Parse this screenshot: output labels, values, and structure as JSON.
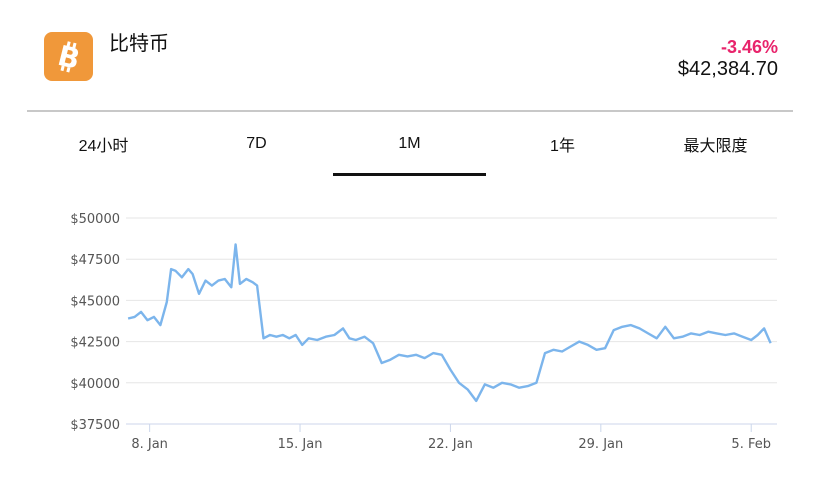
{
  "coin": {
    "name": "比特币",
    "icon": "bitcoin-icon",
    "icon_color": "#f0983a"
  },
  "quote": {
    "change": "-3.46%",
    "change_color": "#e8236b",
    "price": "$42,384.70"
  },
  "tabs": [
    {
      "label": "24小时",
      "active": false
    },
    {
      "label": "7D",
      "active": false
    },
    {
      "label": "1M",
      "active": true
    },
    {
      "label": "1年",
      "active": false
    },
    {
      "label": "最大限度",
      "active": false
    }
  ],
  "chart_data": {
    "type": "line",
    "title": "",
    "xlabel": "",
    "ylabel": "",
    "ylim": [
      37500,
      50000
    ],
    "y_ticks": [
      50000,
      47500,
      45000,
      42500,
      40000,
      37500
    ],
    "y_tick_labels": [
      "$50000",
      "$47500",
      "$45000",
      "$42500",
      "$40000",
      "$37500"
    ],
    "x_ticks": [
      8,
      15,
      22,
      29,
      36
    ],
    "x_tick_labels": [
      "8. Jan",
      "15. Jan",
      "22. Jan",
      "29. Jan",
      "5. Feb"
    ],
    "xlim": [
      6.9,
      37.2
    ],
    "grid": true,
    "line_color": "#7cb5ec",
    "series": [
      {
        "x": [
          7.0,
          7.3,
          7.6,
          7.9,
          8.2,
          8.5,
          8.8,
          9.0,
          9.2,
          9.5,
          9.8,
          10.0,
          10.3,
          10.6,
          10.9,
          11.2,
          11.5,
          11.8,
          12.0,
          12.2,
          12.5,
          12.8,
          13.0,
          13.3,
          13.6,
          13.9,
          14.2,
          14.5,
          14.8,
          15.1,
          15.4,
          15.8,
          16.2,
          16.6,
          17.0,
          17.3,
          17.6,
          18.0,
          18.4,
          18.8,
          19.2,
          19.6,
          20.0,
          20.4,
          20.8,
          21.2,
          21.6,
          22.0,
          22.4,
          22.8,
          23.2,
          23.6,
          24.0,
          24.4,
          24.8,
          25.2,
          25.6,
          26.0,
          26.4,
          26.8,
          27.2,
          27.6,
          28.0,
          28.4,
          28.8,
          29.2,
          29.6,
          30.0,
          30.4,
          30.8,
          31.2,
          31.6,
          32.0,
          32.4,
          32.8,
          33.2,
          33.6,
          34.0,
          34.4,
          34.8,
          35.2,
          35.6,
          36.0,
          36.3,
          36.6,
          36.9
        ],
        "values": [
          43900,
          44000,
          44300,
          43800,
          44000,
          43500,
          44900,
          46900,
          46800,
          46400,
          46900,
          46600,
          45400,
          46200,
          45900,
          46200,
          46300,
          45800,
          48400,
          46000,
          46300,
          46100,
          45900,
          42700,
          42900,
          42800,
          42900,
          42700,
          42900,
          42300,
          42700,
          42600,
          42800,
          42900,
          43300,
          42700,
          42600,
          42800,
          42400,
          41200,
          41400,
          41700,
          41600,
          41700,
          41500,
          41800,
          41700,
          40800,
          40000,
          39600,
          38900,
          39900,
          39700,
          40000,
          39900,
          39700,
          39800,
          40000,
          41800,
          42000,
          41900,
          42200,
          42500,
          42300,
          42000,
          42100,
          43200,
          43400,
          43500,
          43300,
          43000,
          42700,
          43400,
          42700,
          42800,
          43000,
          42900,
          43100,
          43000,
          42900,
          43000,
          42800,
          42600,
          42900,
          43300,
          42400
        ]
      }
    ]
  }
}
